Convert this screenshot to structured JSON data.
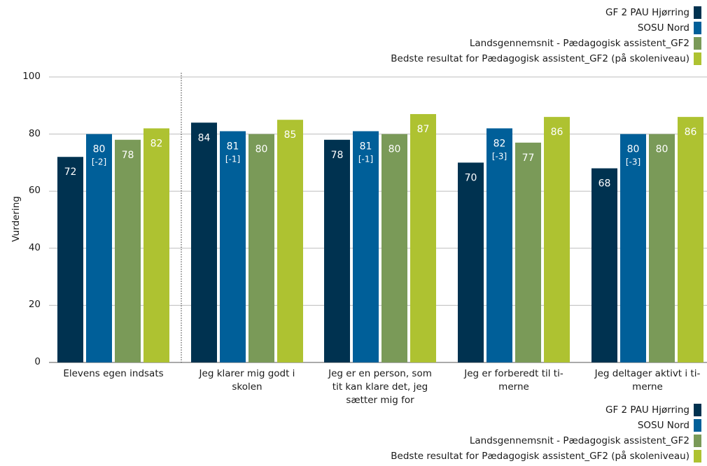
{
  "legend": [
    {
      "label": "GF 2 PAU Hjørring",
      "color": "#003250"
    },
    {
      "label": "SOSU Nord",
      "color": "#005f99"
    },
    {
      "label": "Landsgennemsnit - Pædagogisk assistent_GF2",
      "color": "#7a9a58"
    },
    {
      "label": "Bedste resultat for Pædagogisk assistent_GF2 (på skoleniveau)",
      "color": "#aec231"
    }
  ],
  "chart_data": {
    "type": "bar",
    "ylabel": "Vurdering",
    "ylim": [
      0,
      100
    ],
    "yticks": [
      "0",
      "20",
      "40",
      "60",
      "80",
      "100"
    ],
    "categories": [
      "Elevens egen indsats",
      "Jeg klarer mig godt i skolen",
      "Jeg er en person, som tit kan klare det, jeg sætter mig for",
      "Jeg er forberedt til timerne",
      "Jeg deltager aktivt i timerne"
    ],
    "category_lines": [
      [
        "Elevens egen indsats"
      ],
      [
        "Jeg klarer mig godt i",
        "skolen"
      ],
      [
        "Jeg er en person, som",
        "tit kan klare det, jeg",
        "sætter mig for"
      ],
      [
        "Jeg er forberedt til ti-",
        "merne"
      ],
      [
        "Jeg deltager aktivt i ti-",
        "merne"
      ]
    ],
    "series": [
      {
        "name": "GF 2 PAU Hjørring",
        "color": "#003250",
        "values": [
          72,
          84,
          78,
          70,
          68
        ],
        "labels": [
          "72",
          "84",
          "78",
          "70",
          "68"
        ],
        "sublabels": [
          "",
          "",
          "",
          "",
          ""
        ]
      },
      {
        "name": "SOSU Nord",
        "color": "#005f99",
        "values": [
          80,
          81,
          81,
          82,
          80
        ],
        "labels": [
          "80",
          "81",
          "81",
          "82",
          "80"
        ],
        "sublabels": [
          "[-2]",
          "[-1]",
          "[-1]",
          "[-3]",
          "[-3]"
        ]
      },
      {
        "name": "Landsgennemsnit - Pædagogisk assistent_GF2",
        "color": "#7a9a58",
        "values": [
          78,
          80,
          80,
          77,
          80
        ],
        "labels": [
          "78",
          "80",
          "80",
          "77",
          "80"
        ],
        "sublabels": [
          "",
          "",
          "",
          "",
          ""
        ]
      },
      {
        "name": "Bedste resultat for Pædagogisk assistent_GF2 (på skoleniveau)",
        "color": "#aec231",
        "values": [
          82,
          85,
          87,
          86,
          86
        ],
        "labels": [
          "82",
          "85",
          "87",
          "86",
          "86"
        ],
        "sublabels": [
          "",
          "",
          "",
          "",
          ""
        ]
      }
    ],
    "grid": true,
    "legend_position": "top-right and bottom-right"
  }
}
